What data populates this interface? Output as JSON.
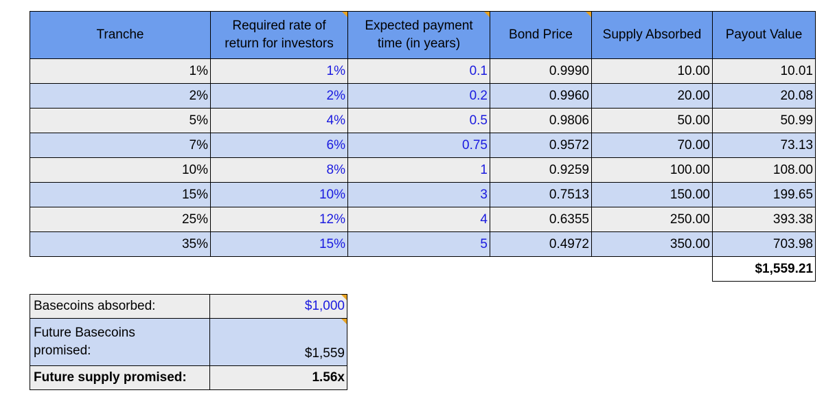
{
  "main_table": {
    "headers": [
      "Tranche",
      "Required rate of return for investors",
      "Expected payment time (in years)",
      "Bond Price",
      "Supply Absorbed",
      "Payout Value"
    ],
    "rows": [
      [
        "1%",
        "1%",
        "0.1",
        "0.9990",
        "10.00",
        "10.01"
      ],
      [
        "2%",
        "2%",
        "0.2",
        "0.9960",
        "20.00",
        "20.08"
      ],
      [
        "5%",
        "4%",
        "0.5",
        "0.9806",
        "50.00",
        "50.99"
      ],
      [
        "7%",
        "6%",
        "0.75",
        "0.9572",
        "70.00",
        "73.13"
      ],
      [
        "10%",
        "8%",
        "1",
        "0.9259",
        "100.00",
        "108.00"
      ],
      [
        "15%",
        "10%",
        "3",
        "0.7513",
        "150.00",
        "199.65"
      ],
      [
        "25%",
        "12%",
        "4",
        "0.6355",
        "250.00",
        "393.38"
      ],
      [
        "35%",
        "15%",
        "5",
        "0.4972",
        "350.00",
        "703.98"
      ]
    ],
    "total": "$1,559.21"
  },
  "summary": {
    "basecoins_absorbed_label": "Basecoins absorbed:",
    "basecoins_absorbed_value": "$1,000",
    "future_basecoins_label_line1": "Future Basecoins",
    "future_basecoins_label_line2": "promised:",
    "future_basecoins_value": "$1,559",
    "future_supply_label": "Future supply promised:",
    "future_supply_value": "1.56x"
  },
  "colors": {
    "header_blue": "#6d9ded",
    "row_gray": "#ededed",
    "row_blue": "#cbd9f3",
    "input_text_blue": "#1a1adf",
    "comment_marker": "#e8a424"
  }
}
